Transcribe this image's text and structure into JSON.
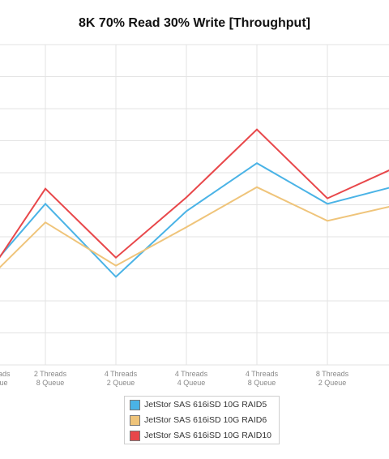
{
  "chart_data": {
    "type": "line",
    "title": "8K 70% Read 30% Write [Throughput]",
    "categories": [
      [
        "Threads",
        "Queue"
      ],
      [
        "2 Threads",
        "8 Queue"
      ],
      [
        "4 Threads",
        "2 Queue"
      ],
      [
        "4 Threads",
        "4 Queue"
      ],
      [
        "4 Threads",
        "8 Queue"
      ],
      [
        "8 Threads",
        "2 Queue"
      ],
      [
        "",
        ""
      ]
    ],
    "ylim": [
      0,
      10
    ],
    "grid": true,
    "legend_position": "bottom",
    "series": [
      {
        "name": "JetStor SAS 616iSD 10G RAID5",
        "color": "#4ab3e6",
        "values": [
          3.1,
          5.03,
          2.75,
          4.8,
          6.3,
          5.03,
          5.6
        ]
      },
      {
        "name": "JetStor SAS 616iSD 10G RAID6",
        "color": "#efc47a",
        "values": [
          2.8,
          4.45,
          3.1,
          4.3,
          5.55,
          4.5,
          5.0
        ]
      },
      {
        "name": "JetStor SAS 616iSD 10G RAID10",
        "color": "#e8474a",
        "values": [
          3.0,
          5.5,
          3.35,
          5.23,
          7.35,
          5.2,
          6.2
        ]
      }
    ]
  }
}
